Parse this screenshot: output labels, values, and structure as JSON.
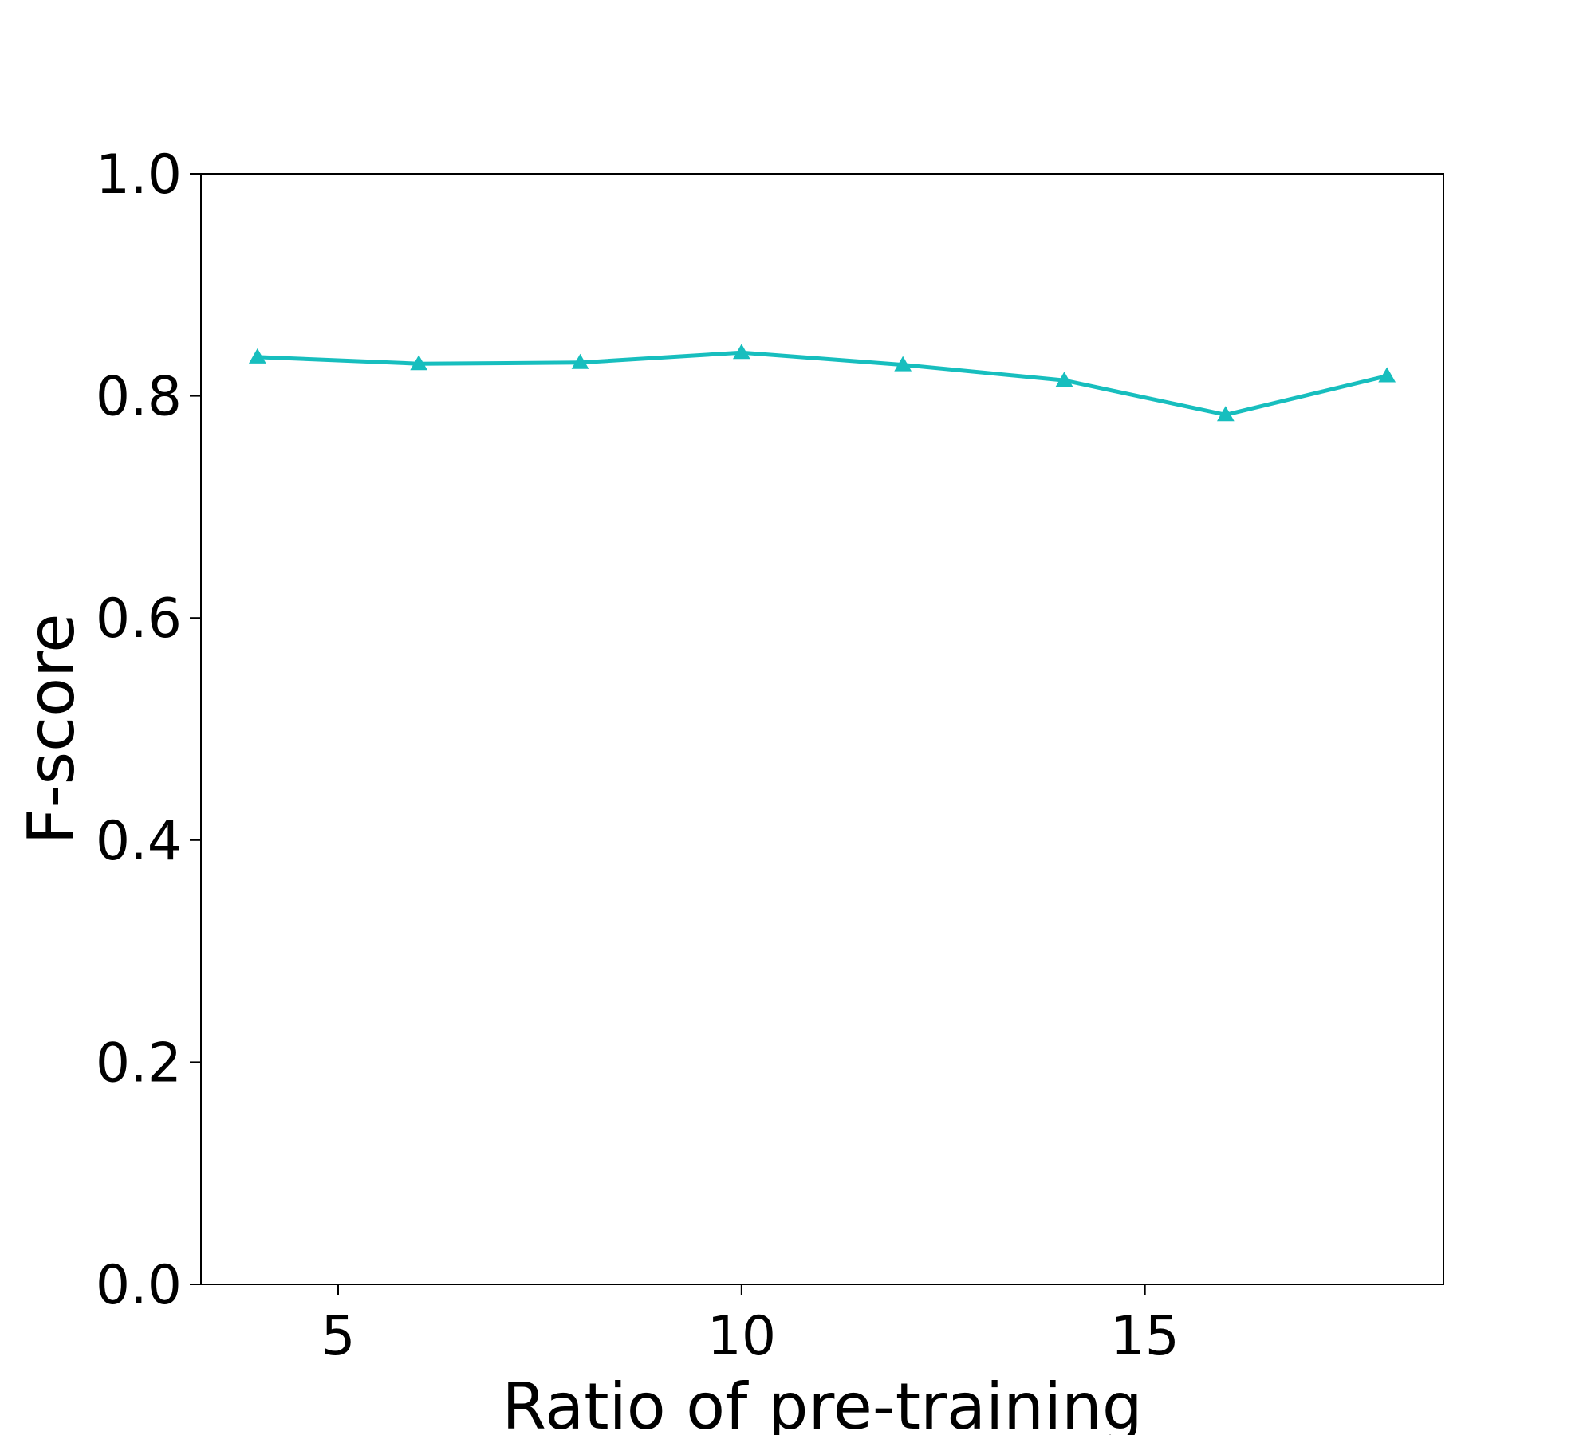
{
  "chart_data": {
    "type": "line",
    "title": "",
    "xlabel": "Ratio of pre-training",
    "ylabel": "F-score",
    "xlim": [
      3.3,
      18.7
    ],
    "ylim": [
      0.0,
      1.0
    ],
    "xticks": [
      5,
      10,
      15
    ],
    "xtick_labels": [
      "5",
      "10",
      "15"
    ],
    "yticks": [
      0.0,
      0.2,
      0.4,
      0.6,
      0.8,
      1.0
    ],
    "ytick_labels": [
      "0.0",
      "0.2",
      "0.4",
      "0.6",
      "0.8",
      "1.0"
    ],
    "grid": false,
    "series": [
      {
        "marker": "triangle",
        "color": "#17bebe",
        "x": [
          4,
          6,
          8,
          10,
          12,
          14,
          16,
          18
        ],
        "y": [
          0.835,
          0.829,
          0.83,
          0.839,
          0.828,
          0.814,
          0.783,
          0.818
        ]
      }
    ]
  }
}
